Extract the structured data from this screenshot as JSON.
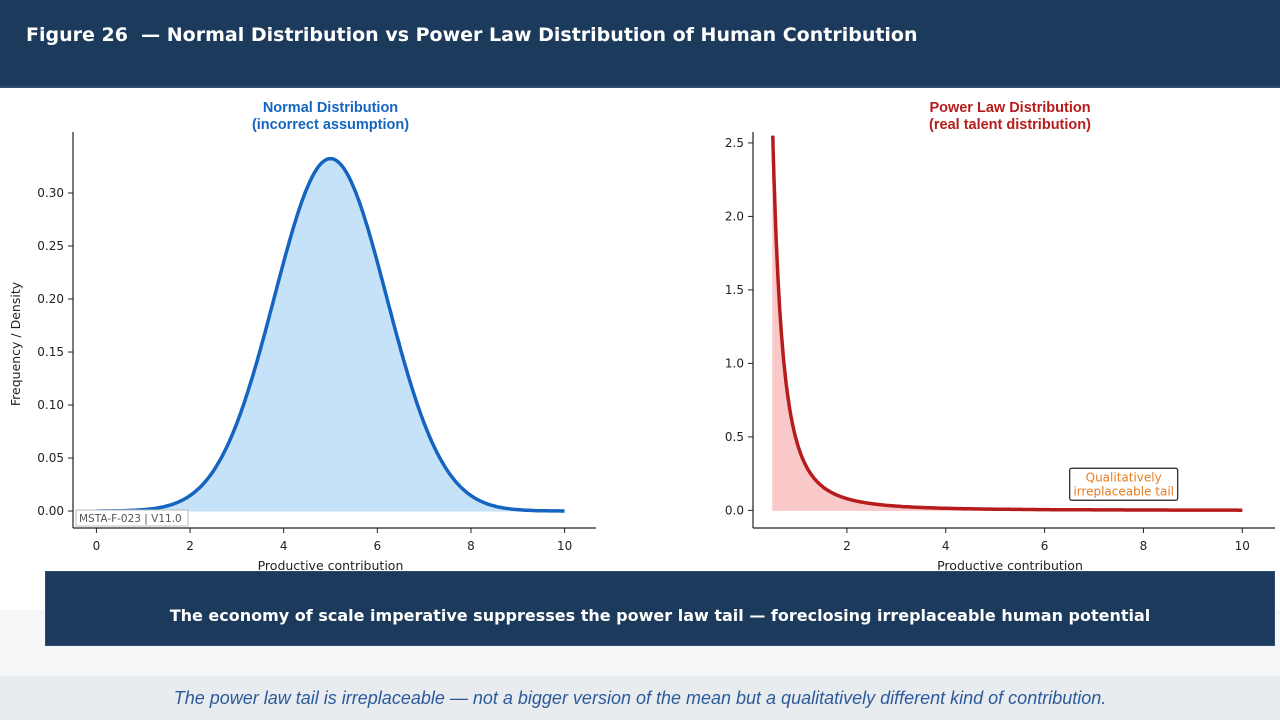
{
  "header": {
    "title": "Figure 26  — Normal Distribution vs Power Law Distribution of Human Contribution"
  },
  "chart_data": [
    {
      "type": "area",
      "title_line1": "Normal Distribution",
      "title_line2": "(incorrect assumption)",
      "title_color": "#1565c0",
      "line_color": "#1565c0",
      "fill_color": "#c6e2f8",
      "distribution": {
        "kind": "normal",
        "mean": 5,
        "std": 1.2,
        "x_range": [
          0,
          10
        ]
      },
      "xlabel": "Productive contribution",
      "ylabel": "Frequency / Density",
      "xlim": [
        -0.5,
        10.5
      ],
      "ylim": [
        -0.016,
        0.35
      ],
      "xticks": [
        0,
        2,
        4,
        6,
        8,
        10
      ],
      "xtick_labels": [
        "0",
        "2",
        "4",
        "6",
        "8",
        "10"
      ],
      "yticks": [
        0,
        0.05,
        0.1,
        0.15,
        0.2,
        0.25,
        0.3
      ],
      "ytick_labels": [
        "0.00",
        "0.05",
        "0.10",
        "0.15",
        "0.20",
        "0.25",
        "0.30"
      ],
      "watermark": "MSTA-F-023 | V11.0"
    },
    {
      "type": "area",
      "title_line1": "Power Law Distribution",
      "title_line2": "(real talent distribution)",
      "title_color": "#b71c1c",
      "line_color": "#b71c1c",
      "fill_color": "#f9c8c8",
      "distribution": {
        "kind": "power_law",
        "alpha": 1.5,
        "x_range": [
          0.5,
          10
        ]
      },
      "xlabel": "Productive contribution",
      "ylabel": "",
      "xlim": [
        0.1,
        10.5
      ],
      "ylim": [
        -0.12,
        2.52
      ],
      "xticks": [
        2,
        4,
        6,
        8,
        10
      ],
      "xtick_labels": [
        "2",
        "4",
        "6",
        "8",
        "10"
      ],
      "yticks": [
        0,
        0.5,
        1,
        1.5,
        2,
        2.5
      ],
      "ytick_labels": [
        "0.0",
        "0.5",
        "1.0",
        "1.5",
        "2.0",
        "2.5"
      ],
      "annotation_line1": "Qualitatively",
      "annotation_line2": "irreplaceable tail",
      "annotation_x": 7.6,
      "annotation_y": 0.13,
      "annotation_color": "#e67e22"
    }
  ],
  "banner": {
    "text": "The economy of scale imperative suppresses the power law tail — foreclosing irreplaceable human potential"
  },
  "footer": {
    "text": "The power law tail is irreplaceable — not a bigger version of the mean but a qualitatively different kind of contribution."
  }
}
